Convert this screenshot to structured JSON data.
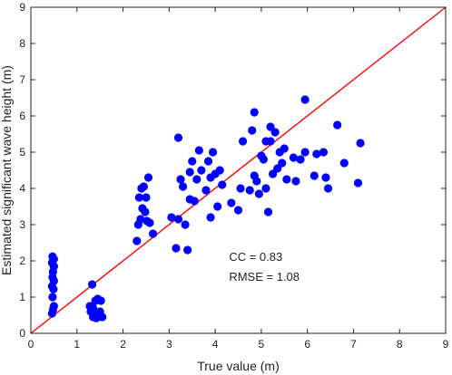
{
  "chart_data": {
    "type": "scatter",
    "title": "",
    "xlabel": "True value (m)",
    "ylabel": "Estimated significant wave height (m)",
    "xlim": [
      0,
      9
    ],
    "ylim": [
      0,
      9
    ],
    "xticks": [
      0,
      1,
      2,
      3,
      4,
      5,
      6,
      7,
      8,
      9
    ],
    "yticks": [
      0,
      1,
      2,
      3,
      4,
      5,
      6,
      7,
      8,
      9
    ],
    "grid": false,
    "marker_color": "#0000ff",
    "reference_line": {
      "from": [
        0,
        0
      ],
      "to": [
        9,
        9
      ],
      "color": "#ff0000"
    },
    "annotations": [
      {
        "text": "CC = 0.83",
        "x": 4.3,
        "y": 2.0
      },
      {
        "text": "RMSE = 1.08",
        "x": 4.3,
        "y": 1.45
      }
    ],
    "points": [
      [
        0.47,
        2.12
      ],
      [
        0.5,
        2.05
      ],
      [
        0.46,
        1.95
      ],
      [
        0.5,
        1.85
      ],
      [
        0.48,
        1.7
      ],
      [
        0.47,
        1.55
      ],
      [
        0.5,
        1.45
      ],
      [
        0.46,
        1.3
      ],
      [
        0.49,
        1.22
      ],
      [
        0.47,
        1.0
      ],
      [
        0.5,
        0.75
      ],
      [
        0.48,
        0.65
      ],
      [
        0.46,
        0.55
      ],
      [
        1.33,
        1.35
      ],
      [
        1.28,
        0.75
      ],
      [
        1.35,
        0.7
      ],
      [
        1.4,
        0.9
      ],
      [
        1.45,
        0.95
      ],
      [
        1.52,
        0.9
      ],
      [
        1.3,
        0.6
      ],
      [
        1.38,
        0.55
      ],
      [
        1.45,
        0.5
      ],
      [
        1.5,
        0.6
      ],
      [
        1.55,
        0.45
      ],
      [
        1.42,
        0.42
      ],
      [
        1.35,
        0.45
      ],
      [
        2.3,
        2.55
      ],
      [
        2.33,
        3.0
      ],
      [
        2.38,
        3.15
      ],
      [
        2.35,
        3.75
      ],
      [
        2.4,
        4.0
      ],
      [
        2.45,
        4.05
      ],
      [
        2.42,
        3.45
      ],
      [
        2.48,
        3.35
      ],
      [
        2.5,
        3.75
      ],
      [
        2.55,
        4.3
      ],
      [
        2.52,
        3.1
      ],
      [
        2.58,
        3.05
      ],
      [
        2.65,
        2.75
      ],
      [
        3.05,
        3.2
      ],
      [
        3.15,
        2.35
      ],
      [
        3.2,
        3.15
      ],
      [
        3.2,
        5.4
      ],
      [
        3.25,
        4.25
      ],
      [
        3.3,
        4.05
      ],
      [
        3.35,
        3.0
      ],
      [
        3.4,
        2.3
      ],
      [
        3.45,
        3.7
      ],
      [
        3.45,
        4.45
      ],
      [
        3.5,
        4.75
      ],
      [
        3.55,
        3.65
      ],
      [
        3.6,
        4.25
      ],
      [
        3.65,
        5.05
      ],
      [
        3.7,
        4.5
      ],
      [
        3.8,
        3.95
      ],
      [
        3.85,
        4.75
      ],
      [
        3.9,
        4.3
      ],
      [
        3.9,
        3.2
      ],
      [
        3.95,
        5.0
      ],
      [
        4.0,
        4.4
      ],
      [
        4.05,
        3.5
      ],
      [
        4.1,
        4.5
      ],
      [
        4.15,
        4.1
      ],
      [
        4.35,
        3.6
      ],
      [
        4.5,
        3.4
      ],
      [
        4.55,
        4.0
      ],
      [
        4.6,
        5.3
      ],
      [
        4.75,
        3.95
      ],
      [
        4.8,
        5.6
      ],
      [
        4.85,
        6.1
      ],
      [
        4.85,
        4.35
      ],
      [
        4.9,
        4.2
      ],
      [
        4.95,
        3.85
      ],
      [
        5.0,
        4.9
      ],
      [
        5.05,
        4.8
      ],
      [
        5.1,
        5.3
      ],
      [
        5.1,
        4.0
      ],
      [
        5.15,
        3.35
      ],
      [
        5.2,
        5.7
      ],
      [
        5.2,
        5.3
      ],
      [
        5.25,
        4.4
      ],
      [
        5.3,
        5.55
      ],
      [
        5.35,
        4.55
      ],
      [
        5.4,
        5.0
      ],
      [
        5.45,
        4.7
      ],
      [
        5.5,
        5.1
      ],
      [
        5.55,
        4.25
      ],
      [
        5.7,
        4.85
      ],
      [
        5.75,
        4.2
      ],
      [
        5.85,
        4.8
      ],
      [
        5.95,
        6.45
      ],
      [
        5.95,
        5.0
      ],
      [
        6.15,
        4.35
      ],
      [
        6.2,
        4.95
      ],
      [
        6.35,
        5.0
      ],
      [
        6.4,
        4.3
      ],
      [
        6.45,
        4.0
      ],
      [
        6.65,
        5.75
      ],
      [
        6.8,
        4.7
      ],
      [
        7.1,
        4.15
      ],
      [
        7.15,
        5.25
      ]
    ]
  }
}
